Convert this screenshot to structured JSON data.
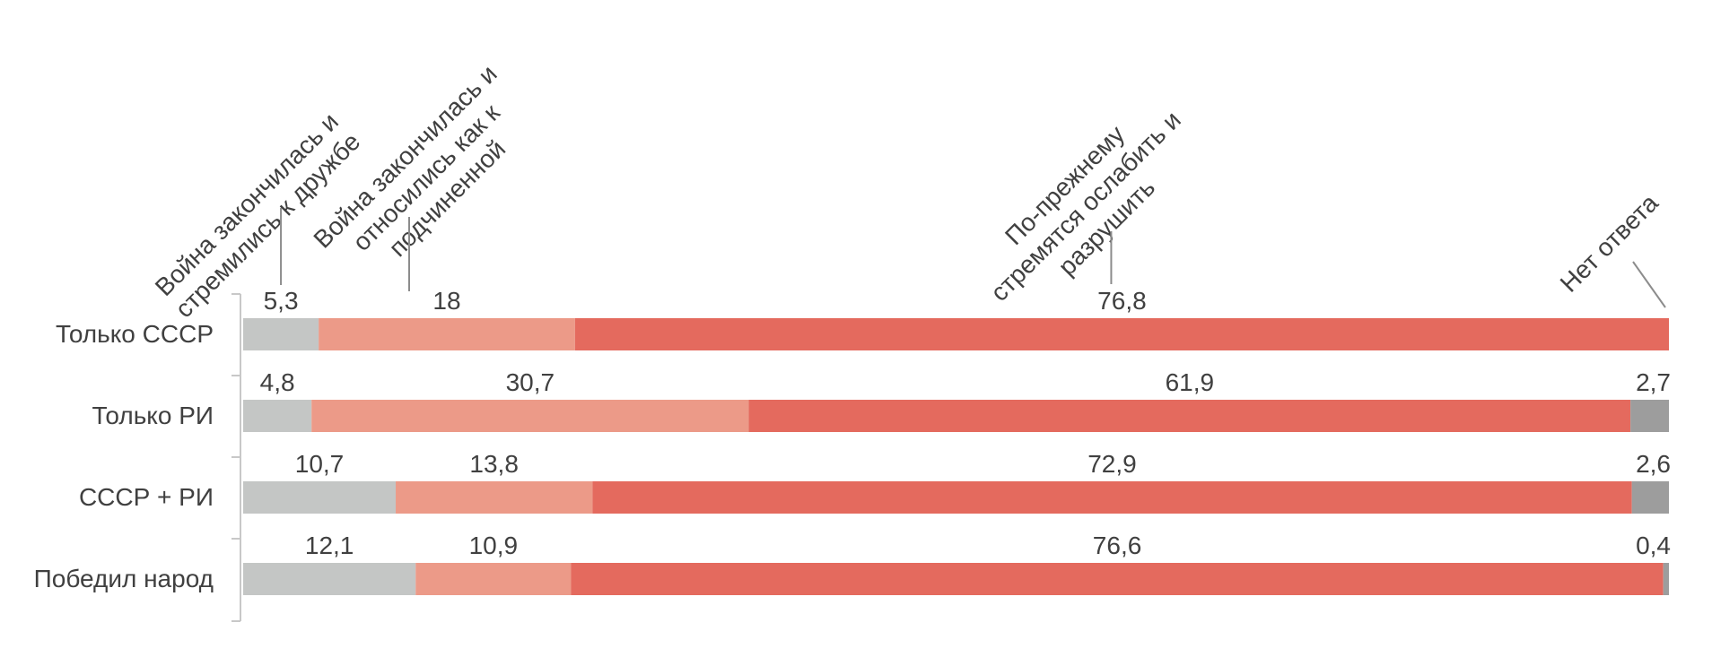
{
  "chart_data": {
    "type": "bar",
    "orientation": "horizontal",
    "stacked": true,
    "categories": [
      "Только СССР",
      "Только РИ",
      "СССР + РИ",
      "Победил народ"
    ],
    "series": [
      {
        "name": "Война закончилась и стремились к дружбе",
        "name_lines": [
          "Война закончилась и",
          "стремились к дружбе"
        ],
        "color": "#c4c6c5",
        "values": [
          5.3,
          4.8,
          10.7,
          12.1
        ],
        "labels": [
          "5,3",
          "4,8",
          "10,7",
          "12,1"
        ]
      },
      {
        "name": "Война закончилась и относились как к подчиненной",
        "name_lines": [
          "Война закончилась и",
          "относились как к",
          "подчиненной"
        ],
        "color": "#ec9a88",
        "values": [
          18,
          30.7,
          13.8,
          10.9
        ],
        "labels": [
          "18",
          "30,7",
          "13,8",
          "10,9"
        ]
      },
      {
        "name": "По-прежнему стремятся ослабить и разрушить",
        "name_lines": [
          "По-прежнему",
          "стремятся ослабить и",
          "разрушить"
        ],
        "color": "#e46a5e",
        "values": [
          76.8,
          61.9,
          72.9,
          76.6
        ],
        "labels": [
          "76,8",
          "61,9",
          "72,9",
          "76,6"
        ]
      },
      {
        "name": "Нет ответа",
        "name_lines": [
          "Нет ответа"
        ],
        "color": "#9d9d9d",
        "values": [
          0,
          2.7,
          2.6,
          0.4
        ],
        "labels": [
          "",
          "2,7",
          "2,6",
          "0,4"
        ]
      }
    ],
    "legend_position": "top, rotated labels with leader lines",
    "grid": false,
    "xlim": [
      0,
      100
    ]
  }
}
